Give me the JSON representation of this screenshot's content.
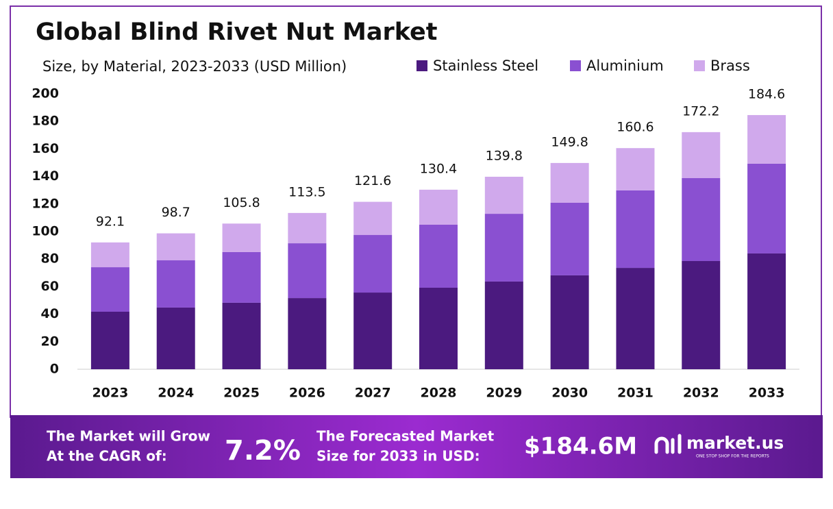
{
  "chart_data": {
    "type": "stacked-bar",
    "title": "Global Blind Rivet Nut Market",
    "subtitle": "Size, by Material, 2023-2033 (USD Million)",
    "categories": [
      "2023",
      "2024",
      "2025",
      "2026",
      "2027",
      "2028",
      "2029",
      "2030",
      "2031",
      "2032",
      "2033"
    ],
    "series": [
      {
        "name": "Stainless Steel",
        "color": "#4b1a7f",
        "values": [
          41.8,
          44.8,
          48.3,
          51.7,
          55.7,
          59.2,
          63.7,
          68.2,
          73.6,
          78.6,
          84.1
        ]
      },
      {
        "name": "Aluminium",
        "color": "#8a50d1",
        "values": [
          32.3,
          34.3,
          36.8,
          39.8,
          41.8,
          45.8,
          49.2,
          52.7,
          56.3,
          60.2,
          65.2
        ]
      },
      {
        "name": "Brass",
        "color": "#d0a9ec",
        "values": [
          18.0,
          19.6,
          20.7,
          22.0,
          24.1,
          25.4,
          26.9,
          28.9,
          30.7,
          33.4,
          35.3
        ]
      }
    ],
    "totals": [
      92.1,
      98.7,
      105.8,
      113.5,
      121.6,
      130.4,
      139.8,
      149.8,
      160.6,
      172.2,
      184.6
    ],
    "ylim": [
      0,
      200
    ],
    "yticks": [
      0,
      20,
      40,
      60,
      80,
      100,
      120,
      140,
      160,
      180,
      200
    ],
    "grid": false,
    "legend": "top-right"
  },
  "footer": {
    "cagr_label": [
      "The Market will Grow",
      "At the CAGR of:"
    ],
    "cagr_value": "7.2%",
    "forecast_label": [
      "The Forecasted Market",
      "Size for 2033 in USD:"
    ],
    "forecast_value": "$184.6M",
    "brand": "market.us",
    "tagline": "ONE STOP SHOP FOR THE REPORTS"
  }
}
